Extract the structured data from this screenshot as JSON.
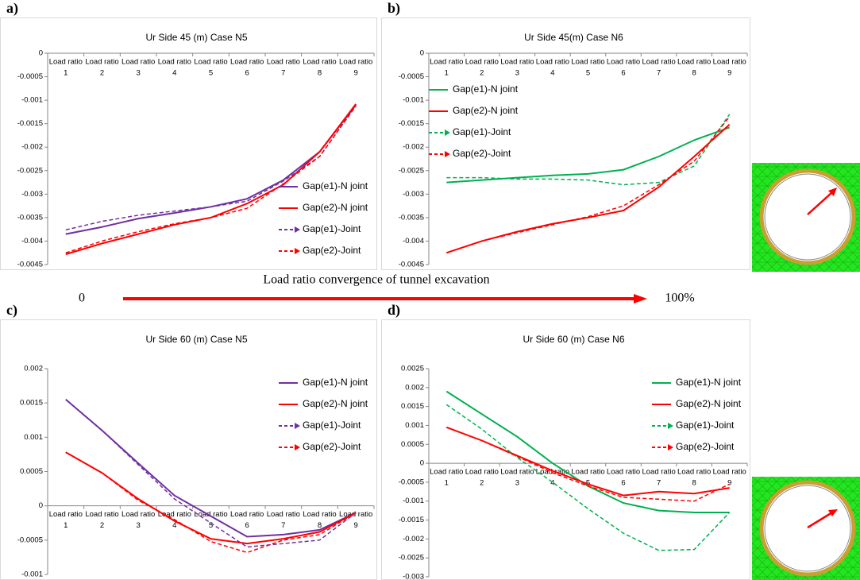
{
  "annotation": {
    "text": "Load ratio convergence of tunnel excavation",
    "start": "0",
    "end": "100%"
  },
  "chart_data": [
    {
      "type": "line",
      "label": "a)",
      "title": "Ur Side 45 (m) Case N5",
      "x_label_prefix": "Load ratio",
      "categories": [
        "1",
        "2",
        "3",
        "4",
        "5",
        "6",
        "7",
        "8",
        "9"
      ],
      "ylim": [
        -0.0045,
        0
      ],
      "yticks": [
        0,
        -0.0005,
        -0.001,
        -0.0015,
        -0.002,
        -0.0025,
        -0.003,
        -0.0035,
        -0.004,
        -0.0045
      ],
      "legend": "lower right",
      "series": [
        {
          "name": "Gap(e1)-N joint",
          "color": "#7030a0",
          "dash": false,
          "values": [
            -0.00385,
            -0.0037,
            -0.00352,
            -0.0034,
            -0.00327,
            -0.0031,
            -0.0027,
            -0.0021,
            -0.0011
          ]
        },
        {
          "name": "Gap(e2)-N joint",
          "color": "#ff0000",
          "dash": false,
          "values": [
            -0.00428,
            -0.00405,
            -0.00385,
            -0.00365,
            -0.0035,
            -0.0032,
            -0.0028,
            -0.0021,
            -0.00108
          ]
        },
        {
          "name": "Gap(e1)-Joint",
          "color": "#7030a0",
          "dash": true,
          "values": [
            -0.00376,
            -0.00358,
            -0.00345,
            -0.00336,
            -0.00327,
            -0.00315,
            -0.00272,
            -0.0022,
            -0.00112
          ]
        },
        {
          "name": "Gap(e2)-Joint",
          "color": "#ff0000",
          "dash": true,
          "values": [
            -0.00425,
            -0.004,
            -0.0038,
            -0.00363,
            -0.0035,
            -0.0033,
            -0.00278,
            -0.0022,
            -0.00112
          ]
        }
      ]
    },
    {
      "type": "line",
      "label": "b)",
      "title": "Ur Side  45(m) Case N6",
      "x_label_prefix": "Load ratio",
      "categories": [
        "1",
        "2",
        "3",
        "4",
        "5",
        "6",
        "7",
        "8",
        "9"
      ],
      "ylim": [
        -0.0045,
        0
      ],
      "yticks": [
        0,
        -0.0005,
        -0.001,
        -0.0015,
        -0.002,
        -0.0025,
        -0.003,
        -0.0035,
        -0.004,
        -0.0045
      ],
      "legend": "upper left",
      "series": [
        {
          "name": "Gap(e1)-N joint",
          "color": "#00b050",
          "dash": false,
          "values": [
            -0.00275,
            -0.0027,
            -0.00265,
            -0.0026,
            -0.00257,
            -0.00248,
            -0.0022,
            -0.00185,
            -0.00158
          ]
        },
        {
          "name": "Gap(e2)-N joint",
          "color": "#ff0000",
          "dash": false,
          "values": [
            -0.00425,
            -0.004,
            -0.0038,
            -0.00363,
            -0.0035,
            -0.00335,
            -0.00285,
            -0.0022,
            -0.00152
          ]
        },
        {
          "name": "Gap(e1)-Joint",
          "color": "#00b050",
          "dash": true,
          "values": [
            -0.00265,
            -0.00265,
            -0.00268,
            -0.00268,
            -0.0027,
            -0.0028,
            -0.00275,
            -0.0024,
            -0.0013
          ]
        },
        {
          "name": "Gap(e2)-Joint",
          "color": "#ff0000",
          "dash": true,
          "values": [
            -0.00425,
            -0.004,
            -0.00382,
            -0.00365,
            -0.00348,
            -0.00325,
            -0.0028,
            -0.0023,
            -0.00135
          ]
        }
      ]
    },
    {
      "type": "line",
      "label": "c)",
      "title": "Ur Side 60 (m) Case N5",
      "x_label_prefix": "Load ratio",
      "categories": [
        "1",
        "2",
        "3",
        "4",
        "5",
        "6",
        "7",
        "8",
        "9"
      ],
      "ylim": [
        -0.001,
        0.002
      ],
      "yticks": [
        0.002,
        0.0015,
        0.001,
        0.0005,
        0,
        -0.0005,
        -0.001
      ],
      "legend": "upper right",
      "series": [
        {
          "name": "Gap(e1)-N joint",
          "color": "#7030a0",
          "dash": false,
          "values": [
            0.00155,
            0.0011,
            0.00062,
            0.00015,
            -0.00015,
            -0.00045,
            -0.00042,
            -0.00035,
            -0.0001
          ]
        },
        {
          "name": "Gap(e2)-N joint",
          "color": "#ff0000",
          "dash": false,
          "values": [
            0.00078,
            0.00048,
            0.0001,
            -0.00022,
            -0.00048,
            -0.00055,
            -0.00048,
            -0.00038,
            -0.0001
          ]
        },
        {
          "name": "Gap(e1)-Joint",
          "color": "#7030a0",
          "dash": true,
          "values": [
            0.00155,
            0.0011,
            0.0006,
            0.0001,
            -0.00025,
            -0.0006,
            -0.00055,
            -0.0005,
            -0.0001
          ]
        },
        {
          "name": "Gap(e2)-Joint",
          "color": "#ff0000",
          "dash": true,
          "values": [
            0.00078,
            0.00048,
            8e-05,
            -0.0002,
            -0.00052,
            -0.00068,
            -0.0005,
            -0.00042,
            -0.0001
          ]
        }
      ]
    },
    {
      "type": "line",
      "label": "d)",
      "title": "Ur Side  60 (m) Case N6",
      "x_label_prefix": "Load ratio",
      "categories": [
        "1",
        "2",
        "3",
        "4",
        "5",
        "6",
        "7",
        "8",
        "9"
      ],
      "ylim": [
        -0.003,
        0.0025
      ],
      "yticks": [
        0.0025,
        0.002,
        0.0015,
        0.001,
        0.0005,
        0,
        -0.0005,
        -0.001,
        -0.0015,
        -0.002,
        -0.0025,
        -0.003
      ],
      "legend": "upper right",
      "series": [
        {
          "name": "Gap(e1)-N joint",
          "color": "#00b050",
          "dash": false,
          "values": [
            0.0019,
            0.0013,
            0.0007,
            0,
            -0.0006,
            -0.00105,
            -0.00125,
            -0.0013,
            -0.0013
          ]
        },
        {
          "name": "Gap(e2)-N joint",
          "color": "#ff0000",
          "dash": false,
          "values": [
            0.00095,
            0.0006,
            0.0002,
            -0.0002,
            -0.00055,
            -0.00085,
            -0.00075,
            -0.0008,
            -0.00065
          ]
        },
        {
          "name": "Gap(e1)-Joint",
          "color": "#00b050",
          "dash": true,
          "values": [
            0.00155,
            0.0009,
            0.00015,
            -0.0005,
            -0.0012,
            -0.00185,
            -0.0023,
            -0.00228,
            -0.0013
          ]
        },
        {
          "name": "Gap(e2)-Joint",
          "color": "#ff0000",
          "dash": true,
          "values": [
            0.00095,
            0.0006,
            0.00018,
            -0.00025,
            -0.0006,
            -0.0009,
            -0.00095,
            -0.001,
            -0.00055
          ]
        }
      ]
    }
  ]
}
